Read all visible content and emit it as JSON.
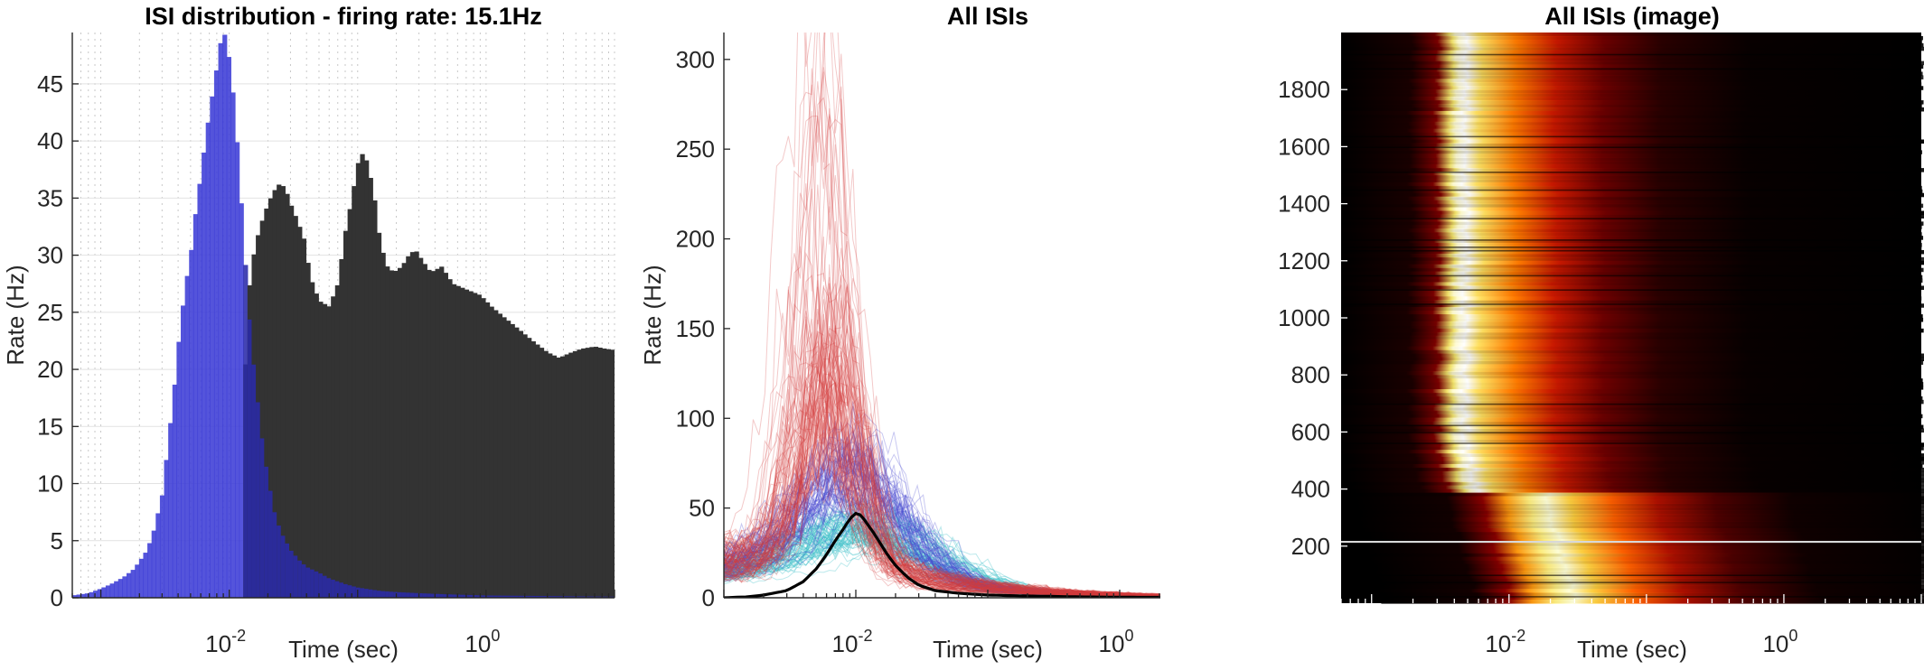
{
  "chart_data": [
    {
      "type": "bar",
      "title": "ISI distribution - firing rate: 15.1Hz",
      "xlabel": "Time (sec)",
      "ylabel": "Rate (Hz)",
      "xscale": "log",
      "xlim": [
        0.0006,
        10
      ],
      "ylim": [
        0,
        49.5
      ],
      "xticks": [
        {
          "value": 0.01,
          "base": "10",
          "exp": "-2"
        },
        {
          "value": 1,
          "base": "10",
          "exp": "0"
        }
      ],
      "yticks": [
        0,
        5,
        10,
        15,
        20,
        25,
        30,
        35,
        40,
        45
      ],
      "grid": true,
      "colors": {
        "dark": "#333333",
        "blue": "#3c3cd6",
        "blue_overlap": "#2a2aa8"
      },
      "series": [
        {
          "color": "#333333",
          "points": [
            [
              0.013,
              0
            ],
            [
              0.0133,
              20
            ],
            [
              0.0145,
              28
            ],
            [
              0.016,
              31
            ],
            [
              0.018,
              33
            ],
            [
              0.02,
              34.5
            ],
            [
              0.022,
              35.5
            ],
            [
              0.024,
              36.2
            ],
            [
              0.027,
              36
            ],
            [
              0.03,
              34.5
            ],
            [
              0.034,
              33
            ],
            [
              0.038,
              31.5
            ],
            [
              0.043,
              28
            ],
            [
              0.05,
              26
            ],
            [
              0.06,
              25.5
            ],
            [
              0.07,
              27.5
            ],
            [
              0.08,
              32
            ],
            [
              0.09,
              35
            ],
            [
              0.1,
              38
            ],
            [
              0.11,
              39
            ],
            [
              0.12,
              38
            ],
            [
              0.135,
              35
            ],
            [
              0.15,
              31
            ],
            [
              0.17,
              29
            ],
            [
              0.19,
              28.5
            ],
            [
              0.22,
              29
            ],
            [
              0.25,
              30
            ],
            [
              0.28,
              30.5
            ],
            [
              0.32,
              29.5
            ],
            [
              0.37,
              28.5
            ],
            [
              0.45,
              29
            ],
            [
              0.55,
              27.5
            ],
            [
              0.7,
              27
            ],
            [
              0.9,
              26.5
            ],
            [
              1.1,
              25.5
            ],
            [
              1.4,
              24.5
            ],
            [
              1.8,
              23.5
            ],
            [
              2.3,
              22.5
            ],
            [
              3,
              21.5
            ],
            [
              3.7,
              21
            ],
            [
              4.4,
              21.4
            ],
            [
              5.5,
              21.8
            ],
            [
              7,
              22
            ],
            [
              8.5,
              21.8
            ],
            [
              10,
              21.7
            ]
          ]
        },
        {
          "color": "#3c3cd6",
          "points": [
            [
              0.0006,
              0.2
            ],
            [
              0.0008,
              0.4
            ],
            [
              0.001,
              0.8
            ],
            [
              0.0012,
              1.2
            ],
            [
              0.0015,
              1.8
            ],
            [
              0.0018,
              2.5
            ],
            [
              0.002,
              3.2
            ],
            [
              0.0023,
              4.2
            ],
            [
              0.0026,
              6
            ],
            [
              0.003,
              9
            ],
            [
              0.0033,
              13
            ],
            [
              0.0037,
              18
            ],
            [
              0.004,
              22
            ],
            [
              0.0045,
              27
            ],
            [
              0.005,
              30
            ],
            [
              0.0055,
              34
            ],
            [
              0.006,
              37
            ],
            [
              0.0065,
              40
            ],
            [
              0.007,
              42.5
            ],
            [
              0.0075,
              44.5
            ],
            [
              0.008,
              46.5
            ],
            [
              0.0085,
              48.5
            ],
            [
              0.009,
              49.5
            ],
            [
              0.0095,
              49
            ],
            [
              0.01,
              47
            ],
            [
              0.011,
              43
            ],
            [
              0.012,
              37
            ],
            [
              0.013,
              31
            ],
            [
              0.014,
              26
            ],
            [
              0.015,
              22
            ],
            [
              0.016,
              19
            ],
            [
              0.018,
              14
            ],
            [
              0.02,
              10.5
            ],
            [
              0.023,
              7
            ],
            [
              0.026,
              5.5
            ],
            [
              0.03,
              4.2
            ],
            [
              0.035,
              3.3
            ],
            [
              0.04,
              2.7
            ],
            [
              0.05,
              2.2
            ],
            [
              0.06,
              1.7
            ],
            [
              0.08,
              1.2
            ],
            [
              0.1,
              0.9
            ],
            [
              0.15,
              0.6
            ],
            [
              0.2,
              0.5
            ],
            [
              0.3,
              0.4
            ],
            [
              0.5,
              0.3
            ],
            [
              1,
              0.2
            ],
            [
              3,
              0.15
            ],
            [
              10,
              0.1
            ]
          ]
        }
      ]
    },
    {
      "type": "line",
      "title": "All ISIs",
      "xlabel": "Time (sec)",
      "ylabel": "Rate (Hz)",
      "xscale": "log",
      "xlim": [
        0.001,
        10
      ],
      "ylim": [
        0,
        315
      ],
      "xticks": [
        {
          "value": 0.01,
          "base": "10",
          "exp": "-2"
        },
        {
          "value": 1,
          "base": "10",
          "exp": "0"
        }
      ],
      "yticks": [
        0,
        50,
        100,
        150,
        200,
        250,
        300
      ],
      "grid": false,
      "colors": {
        "red": "#d43c3c",
        "blue": "#4a4ad0",
        "cyan": "#3cc0c8",
        "mean": "#000000"
      },
      "series": [
        {
          "color": "#000000",
          "points": [
            [
              0.001,
              0
            ],
            [
              0.0015,
              0.5
            ],
            [
              0.002,
              1.5
            ],
            [
              0.003,
              4
            ],
            [
              0.004,
              9
            ],
            [
              0.005,
              16
            ],
            [
              0.006,
              24
            ],
            [
              0.007,
              32
            ],
            [
              0.008,
              38
            ],
            [
              0.009,
              44
            ],
            [
              0.01,
              47
            ],
            [
              0.011,
              46
            ],
            [
              0.012,
              42
            ],
            [
              0.014,
              35
            ],
            [
              0.017,
              25
            ],
            [
              0.02,
              18
            ],
            [
              0.025,
              11
            ],
            [
              0.03,
              7
            ],
            [
              0.04,
              4
            ],
            [
              0.06,
              2.5
            ],
            [
              0.1,
              1.5
            ],
            [
              0.2,
              1
            ],
            [
              0.5,
              0.5
            ],
            [
              1,
              0.3
            ],
            [
              10,
              0.1
            ]
          ]
        }
      ]
    },
    {
      "type": "heatmap",
      "title": "All ISIs (image)",
      "xlabel": "Time (sec)",
      "xscale": "log",
      "xlim": [
        0.0006,
        10
      ],
      "ylim": [
        0,
        2000
      ],
      "xticks": [
        {
          "value": 0.01,
          "base": "10",
          "exp": "-2"
        },
        {
          "value": 1,
          "base": "10",
          "exp": "0"
        }
      ],
      "yticks": [
        200,
        400,
        600,
        800,
        1000,
        1200,
        1400,
        1600,
        1800
      ],
      "colormap": "hot",
      "highlight_row": 215
    }
  ]
}
